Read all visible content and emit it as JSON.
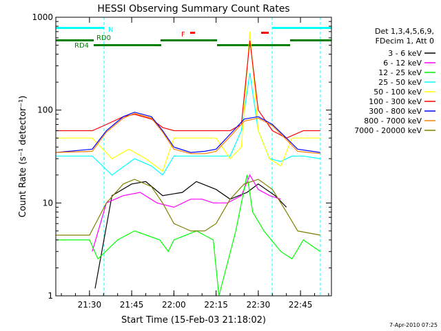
{
  "chart_data": {
    "type": "line",
    "title": "HESSI Observing Summary Count Rates",
    "xlabel": "Start Time (15-Feb-03 21:18:02)",
    "ylabel": "Count Rate (s⁻¹ detector⁻¹)",
    "ylog": true,
    "xlim": [
      "21:18:02",
      "22:56:00"
    ],
    "ylim": [
      1,
      1000
    ],
    "x_ticks": [
      "21:30",
      "21:45",
      "22:00",
      "22:15",
      "22:30",
      "22:45"
    ],
    "y_ticks": [
      "1",
      "10",
      "100",
      "1000"
    ],
    "grid": false,
    "legend_position": "right",
    "legend_header": [
      "Det 1,3,4,5,6,9,",
      "FDecim 1, Att 0"
    ],
    "footer_text": "7-Apr-2010 07:25",
    "annotations": {
      "night_label": "N",
      "flare_label": "F",
      "saa_labels": [
        "RD0",
        "RD4"
      ]
    },
    "series": [
      {
        "name": "3 - 6 keV",
        "color": "#000000",
        "x": [
          "21:18",
          "21:28",
          "21:32",
          "21:38",
          "21:45",
          "21:50",
          "21:56",
          "22:03",
          "22:08",
          "22:15",
          "22:20",
          "22:26",
          "22:30",
          "22:36",
          "22:40",
          "22:45",
          "22:52"
        ],
        "y": [
          null,
          null,
          1.2,
          12,
          16,
          17,
          12,
          13,
          17,
          14,
          11,
          13,
          16,
          12,
          9,
          null,
          null
        ]
      },
      {
        "name": "6 - 12 keV",
        "color": "#ff00ff",
        "x": [
          "21:31",
          "21:36",
          "21:42",
          "21:48",
          "21:54",
          "22:00",
          "22:06",
          "22:10",
          "22:14",
          "22:19",
          "22:24",
          "22:27",
          "22:30",
          "22:34",
          "22:38"
        ],
        "y": [
          3,
          10,
          12,
          13,
          10,
          9,
          11,
          11,
          10,
          10,
          12,
          20,
          14,
          12,
          11
        ]
      },
      {
        "name": "12 - 25 keV",
        "color": "#00ff00",
        "x": [
          "21:18",
          "21:30",
          "21:33",
          "21:40",
          "21:46",
          "21:55",
          "21:58",
          "22:00",
          "22:08",
          "22:14",
          "22:16",
          "22:22",
          "22:26",
          "22:28",
          "22:32",
          "22:38",
          "22:42",
          "22:46",
          "22:52"
        ],
        "y": [
          4,
          4,
          2.5,
          4,
          5,
          4,
          3,
          4,
          5,
          4,
          1,
          5,
          20,
          8,
          5,
          3,
          2.5,
          4,
          3
        ]
      },
      {
        "name": "25 - 50 keV",
        "color": "#00ffff",
        "x": [
          "21:18",
          "21:31",
          "21:38",
          "21:46",
          "21:52",
          "21:56",
          "22:00",
          "22:06",
          "22:11",
          "22:15",
          "22:20",
          "22:24",
          "22:27",
          "22:30",
          "22:34",
          "22:38",
          "22:42",
          "22:46",
          "22:52"
        ],
        "y": [
          32,
          32,
          20,
          30,
          25,
          20,
          32,
          32,
          32,
          32,
          32,
          60,
          250,
          60,
          30,
          28,
          32,
          32,
          30
        ]
      },
      {
        "name": "50 - 100 keV",
        "color": "#ffff00",
        "x": [
          "21:18",
          "21:31",
          "21:38",
          "21:44",
          "21:50",
          "21:56",
          "22:00",
          "22:06",
          "22:11",
          "22:15",
          "22:20",
          "22:24",
          "22:27",
          "22:30",
          "22:34",
          "22:38",
          "22:42",
          "22:46",
          "22:52"
        ],
        "y": [
          50,
          50,
          30,
          38,
          30,
          22,
          50,
          50,
          50,
          50,
          30,
          40,
          700,
          60,
          30,
          25,
          50,
          50,
          50
        ]
      },
      {
        "name": "100 - 300 keV",
        "color": "#ff0000",
        "x": [
          "21:18",
          "21:31",
          "21:36",
          "21:42",
          "21:46",
          "21:52",
          "21:56",
          "22:00",
          "22:06",
          "22:11",
          "22:15",
          "22:20",
          "22:24",
          "22:27",
          "22:30",
          "22:35",
          "22:40",
          "22:46",
          "22:52"
        ],
        "y": [
          60,
          60,
          70,
          85,
          90,
          80,
          65,
          60,
          60,
          60,
          60,
          60,
          70,
          560,
          100,
          60,
          50,
          60,
          60
        ]
      },
      {
        "name": "300 - 800 keV",
        "color": "#0000ff",
        "x": [
          "21:18",
          "21:31",
          "21:36",
          "21:42",
          "21:46",
          "21:52",
          "21:56",
          "22:00",
          "22:06",
          "22:11",
          "22:15",
          "22:20",
          "22:25",
          "22:30",
          "22:35",
          "22:40",
          "22:44",
          "22:52"
        ],
        "y": [
          35,
          38,
          60,
          85,
          95,
          85,
          60,
          40,
          35,
          36,
          38,
          55,
          80,
          85,
          70,
          50,
          38,
          35
        ]
      },
      {
        "name": "800 - 7000 keV",
        "color": "#ff8000",
        "x": [
          "21:18",
          "21:31",
          "21:36",
          "21:42",
          "21:46",
          "21:52",
          "21:56",
          "22:00",
          "22:06",
          "22:11",
          "22:15",
          "22:20",
          "22:25",
          "22:30",
          "22:35",
          "22:40",
          "22:44",
          "22:52"
        ],
        "y": [
          35,
          36,
          58,
          82,
          92,
          82,
          58,
          38,
          34,
          34,
          36,
          52,
          76,
          82,
          68,
          48,
          36,
          34
        ]
      },
      {
        "name": "7000 - 20000 keV",
        "color": "#808000",
        "x": [
          "21:18",
          "21:30",
          "21:36",
          "21:42",
          "21:46",
          "21:52",
          "21:56",
          "22:00",
          "22:06",
          "22:11",
          "22:15",
          "22:20",
          "22:25",
          "22:30",
          "22:35",
          "22:40",
          "22:44",
          "22:52"
        ],
        "y": [
          4.5,
          4.5,
          10,
          16,
          18,
          15,
          10,
          6,
          5,
          5,
          6,
          11,
          16,
          18,
          14,
          8,
          5,
          4.5
        ]
      }
    ]
  }
}
